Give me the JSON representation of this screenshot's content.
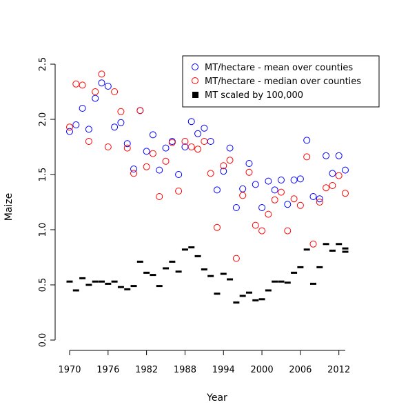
{
  "chart_data": {
    "type": "scatter",
    "title": "",
    "xlabel": "Year",
    "ylabel": "Maize",
    "xlim": [
      1970,
      2013
    ],
    "ylim": [
      0.0,
      2.5
    ],
    "x_ticks": [
      1970,
      1976,
      1982,
      1988,
      1994,
      2000,
      2006,
      2012
    ],
    "x_tick_labels": [
      "1970",
      "1976",
      "1982",
      "1988",
      "1994",
      "2000",
      "2006",
      "2012"
    ],
    "y_ticks": [
      0.0,
      0.5,
      1.0,
      1.5,
      2.0,
      2.5
    ],
    "y_tick_labels": [
      "0.0",
      "0.5",
      "1.0",
      "1.5",
      "2.0",
      "2.5"
    ],
    "grid": false,
    "legend_position": "top-right",
    "x": [
      1970,
      1971,
      1972,
      1973,
      1974,
      1975,
      1976,
      1977,
      1978,
      1979,
      1980,
      1981,
      1982,
      1983,
      1984,
      1985,
      1986,
      1987,
      1988,
      1989,
      1990,
      1991,
      1992,
      1993,
      1994,
      1995,
      1996,
      1997,
      1998,
      1999,
      2000,
      2001,
      2002,
      2003,
      2004,
      2005,
      2006,
      2007,
      2008,
      2009,
      2010,
      2011,
      2012,
      2013
    ],
    "series": [
      {
        "name": "MT/hectare - mean over counties",
        "marker": "open-circle",
        "color": "#0000ff",
        "values": [
          1.89,
          1.95,
          2.1,
          1.91,
          2.19,
          2.33,
          2.3,
          1.93,
          1.97,
          1.78,
          1.55,
          2.08,
          1.71,
          1.86,
          1.54,
          1.74,
          1.8,
          1.5,
          1.75,
          1.98,
          1.87,
          1.92,
          1.8,
          1.36,
          1.53,
          1.74,
          1.2,
          1.37,
          1.6,
          1.41,
          1.2,
          1.44,
          1.36,
          1.45,
          1.23,
          1.45,
          1.46,
          1.81,
          1.3,
          1.28,
          1.67,
          1.51,
          1.67,
          1.54
        ]
      },
      {
        "name": "MT/hectare - median over counties",
        "marker": "open-circle",
        "color": "#ff0000",
        "values": [
          1.93,
          2.32,
          2.31,
          1.8,
          2.25,
          2.41,
          1.75,
          2.25,
          2.07,
          1.74,
          1.51,
          2.08,
          1.57,
          1.69,
          1.3,
          1.62,
          1.79,
          1.35,
          1.8,
          1.75,
          1.73,
          1.8,
          1.51,
          1.02,
          1.58,
          1.63,
          0.74,
          1.31,
          1.52,
          1.04,
          0.99,
          1.14,
          1.27,
          1.34,
          0.99,
          1.28,
          1.22,
          1.66,
          0.87,
          1.25,
          1.38,
          1.4,
          1.49,
          1.33
        ]
      },
      {
        "name": "MT scaled by 100,000",
        "marker": "dash",
        "color": "#000000",
        "values": [
          0.53,
          0.45,
          0.56,
          0.5,
          0.53,
          0.53,
          0.51,
          0.53,
          0.48,
          0.46,
          0.49,
          0.71,
          0.61,
          0.59,
          0.49,
          0.65,
          0.71,
          0.62,
          0.82,
          0.84,
          0.76,
          0.64,
          0.58,
          0.42,
          0.6,
          0.55,
          0.34,
          0.4,
          0.43,
          0.36,
          0.37,
          0.45,
          0.53,
          0.53,
          0.52,
          0.61,
          0.66,
          0.82,
          0.51,
          0.66,
          0.87,
          0.81,
          0.87,
          0.83
        ]
      },
      {
        "name": "",
        "marker": "dash",
        "color": "#000000",
        "values": [
          0.8
        ]
      }
    ]
  }
}
